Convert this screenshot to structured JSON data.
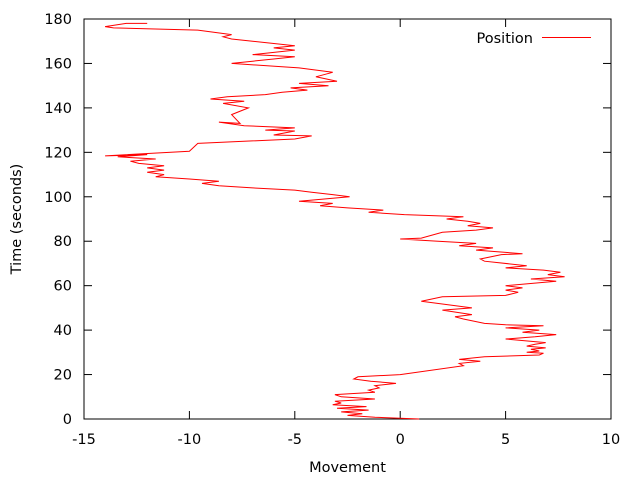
{
  "chart_data": {
    "type": "line",
    "xlabel": "Movement",
    "ylabel": "Time (seconds)",
    "xlim": [
      -15,
      10
    ],
    "ylim": [
      0,
      180
    ],
    "xticks": [
      -15,
      -10,
      -5,
      0,
      5,
      10
    ],
    "yticks": [
      0,
      20,
      40,
      60,
      80,
      100,
      120,
      140,
      160,
      180
    ],
    "grid": false,
    "legend_position": "top-right",
    "series": [
      {
        "name": "Position",
        "color": "#ff0000",
        "points": [
          [
            0.9,
            0.0
          ],
          [
            -1.2,
            0.8
          ],
          [
            -2.5,
            1.6
          ],
          [
            -1.8,
            2.4
          ],
          [
            -2.8,
            3.2
          ],
          [
            -1.5,
            4.0
          ],
          [
            -3.0,
            4.8
          ],
          [
            -1.6,
            5.6
          ],
          [
            -3.2,
            6.4
          ],
          [
            -2.8,
            7.2
          ],
          [
            -3.1,
            8.0
          ],
          [
            -1.2,
            9.0
          ],
          [
            -2.8,
            10.0
          ],
          [
            -3.1,
            11.0
          ],
          [
            -1.2,
            12.0
          ],
          [
            -1.5,
            13.0
          ],
          [
            -1.0,
            14.0
          ],
          [
            -1.2,
            15.0
          ],
          [
            -0.2,
            16.0
          ],
          [
            -1.4,
            17.0
          ],
          [
            -2.2,
            18.0
          ],
          [
            -2.0,
            19.0
          ],
          [
            0.0,
            20.0
          ],
          [
            3.0,
            24.0
          ],
          [
            2.8,
            25.0
          ],
          [
            3.8,
            26.0
          ],
          [
            2.8,
            26.8
          ],
          [
            4.0,
            28.0
          ],
          [
            6.6,
            28.8
          ],
          [
            6.8,
            29.6
          ],
          [
            6.0,
            30.0
          ],
          [
            6.6,
            30.6
          ],
          [
            6.2,
            31.4
          ],
          [
            6.9,
            32.0
          ],
          [
            6.0,
            32.8
          ],
          [
            6.4,
            33.6
          ],
          [
            6.9,
            34.4
          ],
          [
            5.0,
            36.0
          ],
          [
            6.4,
            37.0
          ],
          [
            7.4,
            38.0
          ],
          [
            5.8,
            39.0
          ],
          [
            6.6,
            40.0
          ],
          [
            5.0,
            41.0
          ],
          [
            6.8,
            42.0
          ],
          [
            5.0,
            42.4
          ],
          [
            4.0,
            43.0
          ],
          [
            3.0,
            45.0
          ],
          [
            2.6,
            46.0
          ],
          [
            3.4,
            47.0
          ],
          [
            2.0,
            49.0
          ],
          [
            3.4,
            50.0
          ],
          [
            1.0,
            53.0
          ],
          [
            2.0,
            55.0
          ],
          [
            5.0,
            55.6
          ],
          [
            5.6,
            57.0
          ],
          [
            5.0,
            58.0
          ],
          [
            5.8,
            59.0
          ],
          [
            5.0,
            60.0
          ],
          [
            7.4,
            62.0
          ],
          [
            6.2,
            63.0
          ],
          [
            7.8,
            64.0
          ],
          [
            7.0,
            65.0
          ],
          [
            7.6,
            66.0
          ],
          [
            6.8,
            67.0
          ],
          [
            5.0,
            68.0
          ],
          [
            6.0,
            69.0
          ],
          [
            4.0,
            71.0
          ],
          [
            3.8,
            72.0
          ],
          [
            4.8,
            74.0
          ],
          [
            5.8,
            74.4
          ],
          [
            3.6,
            76.0
          ],
          [
            4.4,
            77.0
          ],
          [
            2.8,
            78.0
          ],
          [
            3.6,
            79.0
          ],
          [
            1.8,
            80.0
          ],
          [
            0.0,
            81.0
          ],
          [
            1.0,
            81.4
          ],
          [
            2.0,
            84.0
          ],
          [
            3.6,
            85.0
          ],
          [
            4.4,
            86.0
          ],
          [
            3.2,
            87.0
          ],
          [
            3.8,
            88.0
          ],
          [
            3.2,
            89.0
          ],
          [
            2.2,
            90.0
          ],
          [
            3.0,
            91.0
          ],
          [
            0.2,
            92.0
          ],
          [
            -1.5,
            93.0
          ],
          [
            -0.8,
            94.0
          ],
          [
            -2.5,
            95.0
          ],
          [
            -3.8,
            96.0
          ],
          [
            -3.2,
            97.0
          ],
          [
            -4.8,
            98.0
          ],
          [
            -3.6,
            99.0
          ],
          [
            -2.4,
            100.0
          ],
          [
            -3.2,
            101.0
          ],
          [
            -4.2,
            102.0
          ],
          [
            -5.0,
            103.0
          ],
          [
            -7.0,
            104.0
          ],
          [
            -8.6,
            105.0
          ],
          [
            -9.4,
            106.0
          ],
          [
            -8.6,
            107.0
          ],
          [
            -10.0,
            108.0
          ],
          [
            -11.6,
            109.0
          ],
          [
            -11.2,
            110.0
          ],
          [
            -12.0,
            111.0
          ],
          [
            -11.2,
            112.0
          ],
          [
            -12.0,
            113.0
          ],
          [
            -11.2,
            114.0
          ],
          [
            -12.4,
            115.0
          ],
          [
            -12.8,
            116.0
          ],
          [
            -11.6,
            117.0
          ],
          [
            -13.4,
            118.0
          ],
          [
            -12.0,
            119.0
          ],
          [
            -14.0,
            118.4
          ],
          [
            -10.0,
            120.5
          ],
          [
            -9.6,
            124.0
          ],
          [
            -5.0,
            126.0
          ],
          [
            -4.2,
            127.4
          ],
          [
            -6.0,
            127.8
          ],
          [
            -5.0,
            129.6
          ],
          [
            -6.4,
            130.0
          ],
          [
            -5.0,
            131.0
          ],
          [
            -7.4,
            132.0
          ],
          [
            -8.6,
            133.6
          ],
          [
            -7.6,
            133.0
          ],
          [
            -8.0,
            137.0
          ],
          [
            -7.2,
            140.0
          ],
          [
            -8.4,
            142.0
          ],
          [
            -7.4,
            143.0
          ],
          [
            -9.0,
            144.0
          ],
          [
            -8.2,
            145.0
          ],
          [
            -6.4,
            146.0
          ],
          [
            -5.6,
            147.0
          ],
          [
            -4.4,
            148.0
          ],
          [
            -5.2,
            149.0
          ],
          [
            -3.4,
            150.0
          ],
          [
            -4.8,
            151.0
          ],
          [
            -3.0,
            152.0
          ],
          [
            -4.0,
            154.0
          ],
          [
            -3.2,
            156.0
          ],
          [
            -4.8,
            158.0
          ],
          [
            -8.0,
            160.0
          ],
          [
            -6.0,
            162.0
          ],
          [
            -5.0,
            163.0
          ],
          [
            -7.0,
            164.0
          ],
          [
            -5.0,
            166.0
          ],
          [
            -6.0,
            167.0
          ],
          [
            -5.0,
            168.0
          ],
          [
            -7.0,
            170.0
          ],
          [
            -8.0,
            171.0
          ],
          [
            -8.4,
            172.0
          ],
          [
            -8.0,
            173.0
          ],
          [
            -9.6,
            175.0
          ],
          [
            -13.6,
            176.0
          ],
          [
            -14.0,
            176.6
          ],
          [
            -13.0,
            178.0
          ],
          [
            -12.0,
            178.0
          ]
        ]
      }
    ]
  }
}
